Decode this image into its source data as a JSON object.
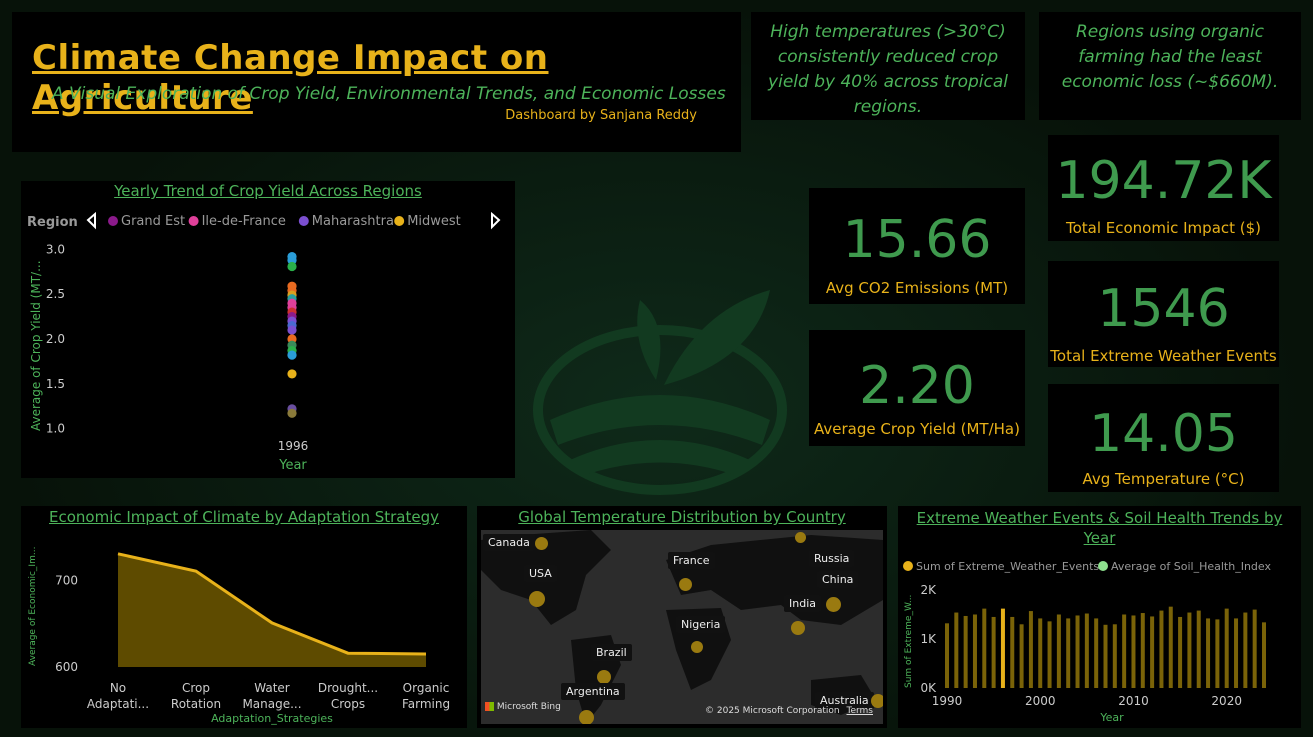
{
  "header": {
    "title": "Climate Change Impact on Agriculture",
    "subtitle": "A Visual Exploration of Crop Yield, Environmental Trends, and Economic Losses",
    "byline": "Dashboard by Sanjana Reddy"
  },
  "insights": {
    "temperature": "High temperatures (>30°C) consistently reduced crop yield by 40% across tropical regions.",
    "organic": "Regions using organic farming had the least economic loss (~$660M)."
  },
  "kpis": {
    "economic_impact": {
      "value": "194.72K",
      "label": "Total Economic Impact ($)"
    },
    "co2": {
      "value": "15.66",
      "label": "Avg CO2 Emissions (MT)"
    },
    "weather_events": {
      "value": "1546",
      "label": "Total Extreme Weather Events"
    },
    "crop_yield": {
      "value": "2.20",
      "label": "Average Crop Yield (MT/Ha)"
    },
    "temperature": {
      "value": "14.05",
      "label": "Avg Temperature (°C)"
    }
  },
  "colors": {
    "gold": "#e8b21a",
    "green": "#4db35a",
    "panel": "#000000",
    "kpi_green": "#3f9a4e"
  },
  "chart_data": [
    {
      "id": "yield_trend",
      "type": "scatter",
      "title": "Yearly Trend of Crop Yield Across Regions",
      "legend_title": "Region",
      "legend": [
        {
          "name": "Grand Est",
          "color": "#8b1a8b"
        },
        {
          "name": "Ile-de-France",
          "color": "#e0409a"
        },
        {
          "name": "Maharashtra",
          "color": "#7b4fd0"
        },
        {
          "name": "Midwest",
          "color": "#e8b21a"
        }
      ],
      "xlabel": "Year",
      "ylabel": "Average of Crop Yield (MT/...",
      "x": [
        1996
      ],
      "x_ticks": [
        "1996"
      ],
      "y_ticks": [
        "1.0",
        "1.5",
        "2.0",
        "2.5",
        "3.0"
      ],
      "ylim": [
        0.95,
        3.05
      ],
      "points": [
        {
          "y": 2.92,
          "color": "#2a9dd8"
        },
        {
          "y": 2.88,
          "color": "#2a9dd8"
        },
        {
          "y": 2.81,
          "color": "#2ab04a"
        },
        {
          "y": 2.59,
          "color": "#e86a20"
        },
        {
          "y": 2.54,
          "color": "#e86a20"
        },
        {
          "y": 2.49,
          "color": "#d8a020"
        },
        {
          "y": 2.45,
          "color": "#2aa0a0"
        },
        {
          "y": 2.4,
          "color": "#e0409a"
        },
        {
          "y": 2.35,
          "color": "#e0409a"
        },
        {
          "y": 2.3,
          "color": "#cc3030"
        },
        {
          "y": 2.25,
          "color": "#8b1a8b"
        },
        {
          "y": 2.2,
          "color": "#7b4fd0"
        },
        {
          "y": 2.15,
          "color": "#4a6ad0"
        },
        {
          "y": 2.1,
          "color": "#7b4fd0"
        },
        {
          "y": 2.0,
          "color": "#e86a20"
        },
        {
          "y": 1.93,
          "color": "#3a8a5a"
        },
        {
          "y": 1.87,
          "color": "#2ab04a"
        },
        {
          "y": 1.82,
          "color": "#2a9dd8"
        },
        {
          "y": 1.61,
          "color": "#e8b21a"
        },
        {
          "y": 1.22,
          "color": "#6a4fa0"
        },
        {
          "y": 1.17,
          "color": "#8a7a3a"
        }
      ]
    },
    {
      "id": "adaptation",
      "type": "area",
      "title": "Economic Impact of Climate by Adaptation Strategy",
      "categories": [
        "No Adaptati...",
        "Crop Rotation",
        "Water Manage...",
        "Drought... Crops",
        "Organic Farming"
      ],
      "values": [
        731,
        711,
        651,
        616,
        615
      ],
      "xlabel": "Adaptation_Strategies",
      "ylabel": "Average of Economic_Im...",
      "y_ticks": [
        "600",
        "700"
      ],
      "ylim": [
        600,
        740
      ]
    },
    {
      "id": "temp_map",
      "type": "map",
      "title": "Global Temperature Distribution by Country",
      "countries": [
        "Canada",
        "USA",
        "France",
        "Russia",
        "China",
        "India",
        "Nigeria",
        "Brazil",
        "Argentina",
        "Australia"
      ],
      "attribution": "© 2025 Microsoft Corporation",
      "terms": "Terms",
      "brand": "Microsoft Bing"
    },
    {
      "id": "weather_soil",
      "type": "bar",
      "title": "Extreme Weather Events & Soil Health Trends by Year",
      "legend": [
        {
          "name": "Sum of Extreme_Weather_Events",
          "color": "#e8b21a"
        },
        {
          "name": "Average of Soil_Health_Index",
          "color": "#8ee08e"
        }
      ],
      "xlabel": "Year",
      "ylabel": "Sum of Extreme_W...",
      "x_ticks": [
        "1990",
        "2000",
        "2010",
        "2020"
      ],
      "y_ticks": [
        "0K",
        "1K",
        "2K"
      ],
      "ylim": [
        0,
        2000
      ],
      "x": [
        1990,
        1991,
        1992,
        1993,
        1994,
        1995,
        1996,
        1997,
        1998,
        1999,
        2000,
        2001,
        2002,
        2003,
        2004,
        2005,
        2006,
        2007,
        2008,
        2009,
        2010,
        2011,
        2012,
        2013,
        2014,
        2015,
        2016,
        2017,
        2018,
        2019,
        2020,
        2021,
        2022,
        2023,
        2024
      ],
      "values": [
        1320,
        1540,
        1470,
        1500,
        1620,
        1450,
        1620,
        1450,
        1300,
        1570,
        1420,
        1360,
        1500,
        1420,
        1480,
        1520,
        1420,
        1290,
        1300,
        1500,
        1480,
        1530,
        1460,
        1580,
        1660,
        1450,
        1540,
        1580,
        1420,
        1400,
        1620,
        1420,
        1540,
        1600,
        1340
      ],
      "highlight_year": 1996
    }
  ]
}
